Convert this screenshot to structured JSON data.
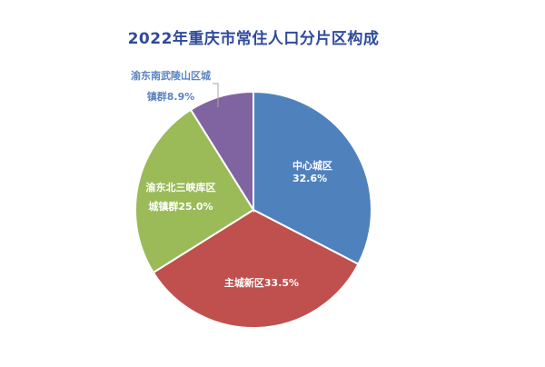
{
  "chart_data": {
    "type": "pie",
    "title": "2022年重庆市常住人口分片区构成",
    "categories": [
      "中心城区",
      "主城新区",
      "渝东北三峡库区城镇群",
      "渝东南武陵山区城镇群"
    ],
    "values": [
      32.6,
      33.5,
      25.0,
      8.9
    ],
    "unit": "%",
    "colors": [
      "#4f81bd",
      "#c0504d",
      "#9bbb59",
      "#8064a2"
    ],
    "start_angle": "12 o'clock, clockwise",
    "labels": [
      {
        "lines": [
          "中心城区",
          "32.6%"
        ],
        "position": "inside"
      },
      {
        "lines": [
          "主城新区33.5%"
        ],
        "position": "inside"
      },
      {
        "lines": [
          "渝东北三峡库区",
          "城镇群25.0%"
        ],
        "position": "inside"
      },
      {
        "lines": [
          "渝东南武陵山区城",
          "镇群8.9%"
        ],
        "position": "outside-with-leader"
      }
    ],
    "legend": "none"
  }
}
